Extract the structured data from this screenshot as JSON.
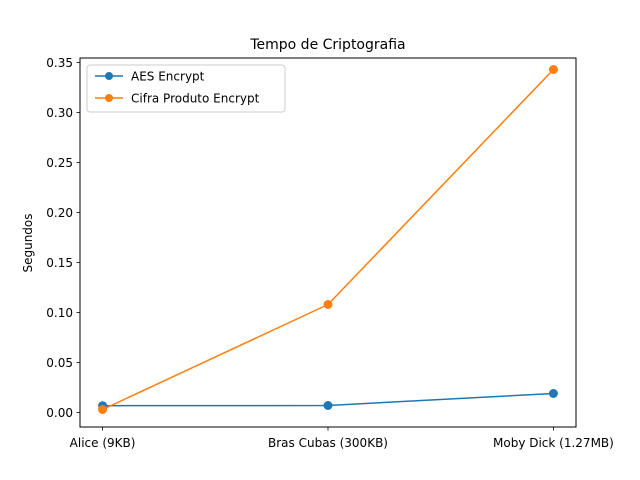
{
  "chart_data": {
    "type": "line",
    "title": "Tempo de Criptografia",
    "xlabel": "",
    "ylabel": "Segundos",
    "categories": [
      "Alice (9KB)",
      "Bras Cubas (300KB)",
      "Moby Dick (1.27MB)"
    ],
    "ylim": [
      -0.0145,
      0.3545
    ],
    "yticks": [
      0.0,
      0.05,
      0.1,
      0.15,
      0.2,
      0.25,
      0.3,
      0.35
    ],
    "ytick_labels": [
      "0.00",
      "0.05",
      "0.10",
      "0.15",
      "0.20",
      "0.25",
      "0.30",
      "0.35"
    ],
    "grid": false,
    "legend_position": "top-left",
    "series": [
      {
        "name": "AES Encrypt",
        "color": "#1f77b4",
        "marker": "circle",
        "values": [
          0.0068,
          0.007,
          0.019
        ]
      },
      {
        "name": "Cifra Produto Encrypt",
        "color": "#ff7f0e",
        "marker": "circle",
        "values": [
          0.003,
          0.108,
          0.343
        ]
      }
    ]
  }
}
